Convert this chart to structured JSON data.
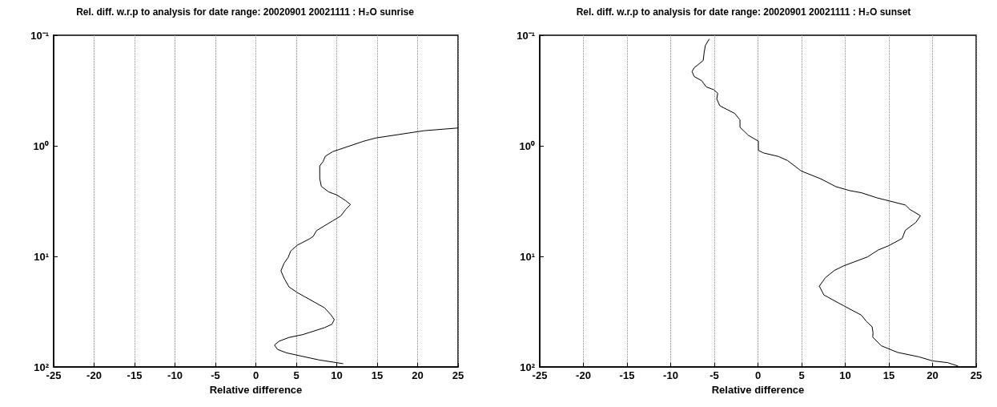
{
  "chart_data": [
    {
      "type": "line",
      "title": "Rel. diff. w.r.p to analysis for date range: 20020901 20021111 : H₂O sunrise",
      "xlabel": "Relative difference",
      "xlim": [
        -25,
        25
      ],
      "xticks": [
        -25,
        -20,
        -15,
        -10,
        -5,
        0,
        5,
        10,
        15,
        20,
        25
      ],
      "ylim": [
        100,
        0.1
      ],
      "yticks": [
        {
          "value": 0.1,
          "label": "10⁻¹"
        },
        {
          "value": 1,
          "label": "10⁰"
        },
        {
          "value": 10,
          "label": "10¹"
        },
        {
          "value": 100,
          "label": "10²"
        }
      ],
      "log": "y",
      "grid": "x",
      "marker": "none",
      "line_style": "solid",
      "series": [
        {
          "color": "#000000",
          "x": [
            25,
            20.8,
            14.8,
            13.3,
            9.5,
            8.6,
            8.3,
            7.9,
            7.9,
            8.1,
            9.0,
            10.0,
            11.1,
            11.7,
            11.1,
            10.5,
            9.5,
            7.5,
            7.1,
            6.6,
            5.1,
            4.3,
            4.0,
            3.5,
            3.1,
            3.5,
            4.1,
            5.1,
            8.5,
            9.3,
            9.7,
            9.4,
            8.5,
            5.8,
            4.1,
            2.9,
            2.3,
            2.7,
            3.8,
            7.8,
            10.8
          ],
          "values": [
            0.69,
            0.73,
            0.85,
            0.91,
            1.13,
            1.24,
            1.39,
            1.52,
            1.98,
            2.33,
            2.61,
            2.78,
            3.13,
            3.4,
            3.77,
            4.31,
            4.77,
            5.85,
            6.58,
            6.97,
            7.93,
            8.97,
            10.2,
            11.5,
            13.5,
            15.8,
            18.9,
            21.2,
            29.2,
            33.9,
            37.4,
            41.1,
            44.1,
            51.0,
            54.1,
            58.4,
            63.4,
            69.6,
            74.6,
            86.4,
            93.4
          ]
        }
      ]
    },
    {
      "type": "line",
      "title": "Rel. diff. w.r.p to analysis for date range: 20020901 20021111 : H₂O sunset",
      "xlabel": "Relative difference",
      "xlim": [
        -25,
        25
      ],
      "xticks": [
        -25,
        -20,
        -15,
        -10,
        -5,
        0,
        5,
        10,
        15,
        20,
        25
      ],
      "ylim": [
        100,
        0.1
      ],
      "yticks": [
        {
          "value": 0.1,
          "label": "10⁻¹"
        },
        {
          "value": 1,
          "label": "10⁰"
        },
        {
          "value": 10,
          "label": "10¹"
        },
        {
          "value": 100,
          "label": "10²"
        }
      ],
      "log": "y",
      "grid": "x",
      "marker": "none",
      "line_style": "solid",
      "series": [
        {
          "color": "#000000",
          "x": [
            -5.58,
            -6.03,
            -6.17,
            -6.27,
            -7.31,
            -7.55,
            -7.31,
            -6.44,
            -5.93,
            -5.06,
            -4.61,
            -4.72,
            -4.37,
            -2.64,
            -2.06,
            -2.06,
            -1.09,
            0.05,
            0.05,
            0.64,
            2.37,
            3.4,
            4.96,
            7.2,
            8.93,
            10.49,
            11.87,
            13.6,
            16.88,
            17.4,
            18.61,
            18.09,
            16.88,
            16.53,
            14.98,
            13.77,
            12.56,
            9.8,
            8.76,
            7.72,
            7.03,
            7.55,
            8.76,
            9.8,
            11.87,
            12.39,
            13.08,
            13.18,
            13.15,
            14.12,
            16.0,
            18.43,
            19.99,
            21.72,
            22.93
          ],
          "values": [
            0.108,
            0.124,
            0.144,
            0.169,
            0.197,
            0.213,
            0.236,
            0.258,
            0.293,
            0.311,
            0.335,
            0.378,
            0.434,
            0.511,
            0.584,
            0.679,
            0.805,
            0.908,
            1.1,
            1.16,
            1.25,
            1.36,
            1.69,
            1.99,
            2.34,
            2.54,
            2.66,
            2.95,
            3.43,
            3.76,
            4.29,
            4.93,
            5.81,
            6.88,
            8.0,
            8.76,
            10.1,
            12.2,
            13.4,
            15.6,
            18.6,
            22.3,
            25.2,
            27.9,
            34.1,
            38.5,
            43.4,
            49.0,
            53.7,
            64.3,
            73.9,
            81.0,
            88.1,
            91.4,
            98.2
          ]
        }
      ]
    }
  ]
}
